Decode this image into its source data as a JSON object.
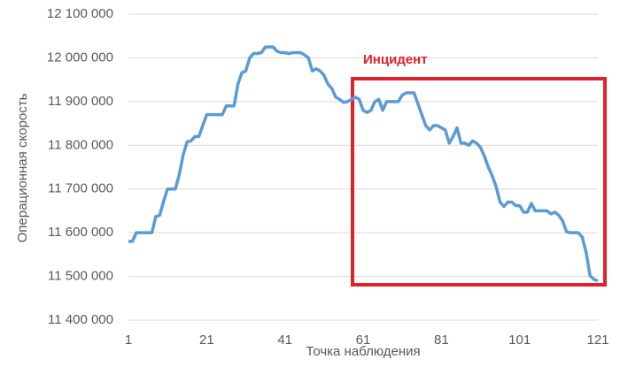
{
  "chart_data": {
    "type": "line",
    "x_label": "Точка наблюдения",
    "y_label": "Операционная скорость",
    "annotation": "Инцидент",
    "x": [
      1,
      2,
      3,
      4,
      5,
      6,
      7,
      8,
      9,
      10,
      11,
      12,
      13,
      14,
      15,
      16,
      17,
      18,
      19,
      20,
      21,
      22,
      23,
      24,
      25,
      26,
      27,
      28,
      29,
      30,
      31,
      32,
      33,
      34,
      35,
      36,
      37,
      38,
      39,
      40,
      41,
      42,
      43,
      44,
      45,
      46,
      47,
      48,
      49,
      50,
      51,
      52,
      53,
      54,
      55,
      56,
      57,
      58,
      59,
      60,
      61,
      62,
      63,
      64,
      65,
      66,
      67,
      68,
      69,
      70,
      71,
      72,
      73,
      74,
      75,
      76,
      77,
      78,
      79,
      80,
      81,
      82,
      83,
      84,
      85,
      86,
      87,
      88,
      89,
      90,
      91,
      92,
      93,
      94,
      95,
      96,
      97,
      98,
      99,
      100,
      101,
      102,
      103,
      104,
      105,
      106,
      107,
      108,
      109,
      110,
      111,
      112,
      113,
      114,
      115,
      116,
      117,
      118,
      119,
      120,
      121
    ],
    "values": [
      11580000,
      11580000,
      11600000,
      11600000,
      11600000,
      11600000,
      11600000,
      11637000,
      11640000,
      11672000,
      11700000,
      11700000,
      11700000,
      11733000,
      11778000,
      11808000,
      11810000,
      11820000,
      11820000,
      11845000,
      11870000,
      11870000,
      11870000,
      11870000,
      11870000,
      11890000,
      11890000,
      11890000,
      11940000,
      11966000,
      11970000,
      12000000,
      12010000,
      12010000,
      12012000,
      12025000,
      12025000,
      12025000,
      12015000,
      12012000,
      12012000,
      12010000,
      12012000,
      12012000,
      12012000,
      12007000,
      12000000,
      11970000,
      11975000,
      11970000,
      11960000,
      11940000,
      11930000,
      11910000,
      11905000,
      11898000,
      11900000,
      11905000,
      11910000,
      11905000,
      11880000,
      11875000,
      11880000,
      11900000,
      11905000,
      11880000,
      11900000,
      11900000,
      11900000,
      11900000,
      11915000,
      11920000,
      11920000,
      11920000,
      11895000,
      11870000,
      11845000,
      11835000,
      11845000,
      11845000,
      11840000,
      11835000,
      11805000,
      11820000,
      11840000,
      11805000,
      11805000,
      11800000,
      11810000,
      11805000,
      11795000,
      11775000,
      11750000,
      11730000,
      11705000,
      11670000,
      11660000,
      11670000,
      11670000,
      11662000,
      11662000,
      11647000,
      11647000,
      11667000,
      11650000,
      11650000,
      11650000,
      11650000,
      11643000,
      11647000,
      11640000,
      11627000,
      11602000,
      11600000,
      11600000,
      11600000,
      11590000,
      11555000,
      11502000,
      11493000,
      11490000
    ],
    "color": "#5b9bd5",
    "xlim": [
      1,
      121
    ],
    "xticks": [
      1,
      21,
      41,
      61,
      81,
      101,
      121
    ],
    "ylim": [
      11400000,
      12100000
    ],
    "yticks": [
      {
        "value": 11400000,
        "label": "11 400 000"
      },
      {
        "value": 11500000,
        "label": "11 500 000"
      },
      {
        "value": 11600000,
        "label": "11 600 000"
      },
      {
        "value": 11700000,
        "label": "11 700 000"
      },
      {
        "value": 11800000,
        "label": "11 800 000"
      },
      {
        "value": 11900000,
        "label": "11 900 000"
      },
      {
        "value": 12000000,
        "label": "12 000 000"
      },
      {
        "value": 12100000,
        "label": "12 100 000"
      }
    ],
    "grid": true
  }
}
